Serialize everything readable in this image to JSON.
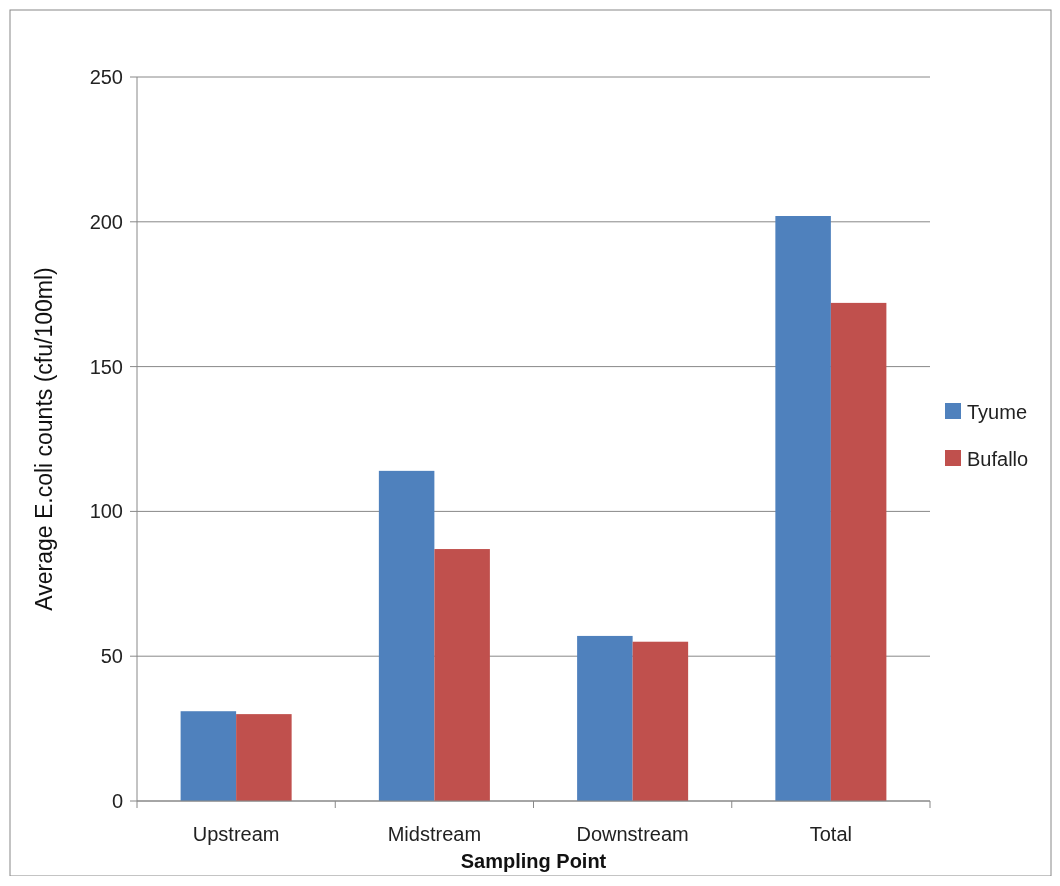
{
  "chart_data": {
    "type": "bar",
    "xlabel": "Sampling Point",
    "ylabel": "Average E.coli counts (cfu/100ml)",
    "categories": [
      "Upstream",
      "Midstream",
      "Downstream",
      "Total"
    ],
    "series": [
      {
        "name": "Tyume",
        "color": "#4f81bd",
        "values": [
          31,
          114,
          57,
          202
        ]
      },
      {
        "name": "Bufallo",
        "color": "#c0504d",
        "values": [
          30,
          87,
          55,
          172
        ]
      }
    ],
    "ylim": [
      0,
      250
    ],
    "yticks": [
      0,
      50,
      100,
      150,
      200,
      250
    ],
    "grid": "y",
    "legend": "right"
  }
}
